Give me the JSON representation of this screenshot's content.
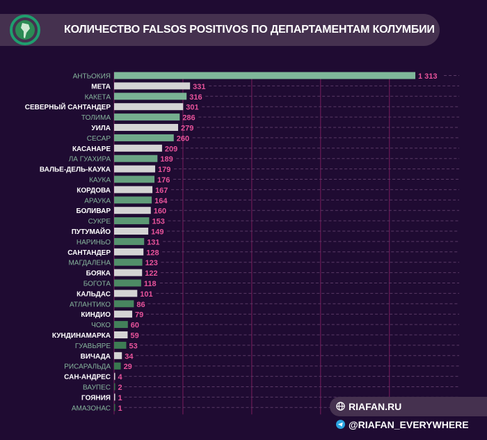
{
  "header": {
    "title": "КОЛИЧЕСТВО FALSOS POSITIVOS ПО ДЕПАРТАМЕНТАМ КОЛУМБИИ"
  },
  "footer": {
    "site": "RIAFAN.RU",
    "telegram": "@RIAFAN_EVERYWHERE"
  },
  "colors": {
    "background": "#1f0b32",
    "value": "#e8539b",
    "grid": "#7a1d5c",
    "green_top": "#7fb79a",
    "green_bottom": "#2f6f44",
    "white_bar": "#d4d4d4"
  },
  "chart_data": {
    "type": "bar",
    "orientation": "horizontal",
    "title": "КОЛИЧЕСТВО FALSOS POSITIVOS ПО ДЕПАРТАМЕНТАМ КОЛУМБИИ",
    "categories": [
      "АНТЬОКИЯ",
      "МЕТА",
      "КАКЕТА",
      "СЕВЕРНЫЙ САНТАНДЕР",
      "ТОЛИМА",
      "УИЛА",
      "СЕСАР",
      "КАСАНАРЕ",
      "ЛА ГУАХИРА",
      "ВАЛЬЕ-ДЕЛЬ-КАУКА",
      "КАУКА",
      "КОРДОВА",
      "АРАУКА",
      "БОЛИВАР",
      "СУКРЕ",
      "ПУТУМАЙО",
      "НАРИНЬО",
      "САНТАНДЕР",
      "МАГДАЛЕНА",
      "БОЯКА",
      "БОГОТА",
      "КАЛЬДАС",
      "АТЛАНТИКО",
      "КИНДИО",
      "ЧОКО",
      "КУНДИНАМАРКА",
      "ГУАВЬЯРЕ",
      "ВИЧАДА",
      "РИСАРАЛЬДА",
      "САН-АНДРЕС",
      "ВАУПЕС",
      "ГОЯНИЯ",
      "АМАЗОНАС"
    ],
    "values": [
      1313,
      331,
      316,
      301,
      286,
      279,
      260,
      209,
      189,
      179,
      176,
      167,
      164,
      160,
      153,
      149,
      131,
      128,
      123,
      122,
      118,
      101,
      86,
      79,
      60,
      59,
      53,
      34,
      29,
      4,
      2,
      1,
      1
    ],
    "value_labels": [
      "1 313",
      "331",
      "316",
      "301",
      "286",
      "279",
      "260",
      "209",
      "189",
      "179",
      "176",
      "167",
      "164",
      "160",
      "153",
      "149",
      "131",
      "128",
      "123",
      "122",
      "118",
      "101",
      "86",
      "79",
      "60",
      "59",
      "53",
      "34",
      "29",
      "4",
      "2",
      "1",
      "1"
    ],
    "xlim": [
      0,
      1313
    ],
    "grid_values": [
      300,
      600,
      900,
      1200
    ],
    "grid": true
  }
}
